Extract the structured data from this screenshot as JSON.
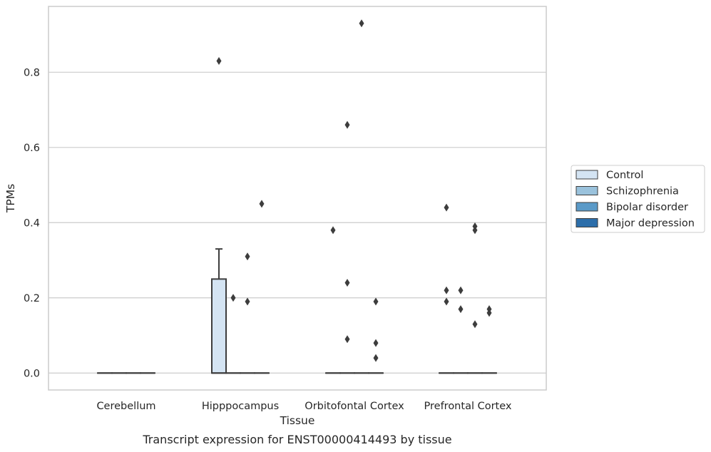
{
  "chart_data": {
    "type": "box",
    "title": "",
    "caption": "Transcript expression for ENST00000414493 by tissue",
    "xlabel": "Tissue",
    "ylabel": "TPMs",
    "ylim": [
      -0.045,
      0.975
    ],
    "yticks": [
      0.0,
      0.2,
      0.4,
      0.6,
      0.8
    ],
    "ytick_labels": [
      "0.0",
      "0.2",
      "0.4",
      "0.6",
      "0.8"
    ],
    "grid": "horizontal",
    "legend_position": "right",
    "categories": [
      "Cerebellum",
      "Hipppocampus",
      "Orbitofontal Cortex",
      "Prefrontal Cortex"
    ],
    "series": [
      {
        "name": "Control",
        "color": "#d4e4f3",
        "boxes": [
          {
            "category": "Cerebellum",
            "whislo": 0,
            "q1": 0,
            "med": 0,
            "q3": 0,
            "whishi": 0,
            "fliers": []
          },
          {
            "category": "Hipppocampus",
            "whislo": 0,
            "q1": 0,
            "med": 0,
            "q3": 0.25,
            "whishi": 0.33,
            "fliers": [
              0.83
            ]
          },
          {
            "category": "Orbitofontal Cortex",
            "whislo": 0,
            "q1": 0,
            "med": 0,
            "q3": 0,
            "whishi": 0,
            "fliers": [
              0.38
            ]
          },
          {
            "category": "Prefrontal Cortex",
            "whislo": 0,
            "q1": 0,
            "med": 0,
            "q3": 0,
            "whishi": 0,
            "fliers": [
              0.44,
              0.22,
              0.19
            ]
          }
        ]
      },
      {
        "name": "Schizophrenia",
        "color": "#9ac2dc",
        "boxes": [
          {
            "category": "Cerebellum",
            "whislo": 0,
            "q1": 0,
            "med": 0,
            "q3": 0,
            "whishi": 0,
            "fliers": []
          },
          {
            "category": "Hipppocampus",
            "whislo": 0,
            "q1": 0,
            "med": 0,
            "q3": 0,
            "whishi": 0,
            "fliers": [
              0.2
            ]
          },
          {
            "category": "Orbitofontal Cortex",
            "whislo": 0,
            "q1": 0,
            "med": 0,
            "q3": 0,
            "whishi": 0,
            "fliers": [
              0.66,
              0.24,
              0.09
            ]
          },
          {
            "category": "Prefrontal Cortex",
            "whislo": 0,
            "q1": 0,
            "med": 0,
            "q3": 0,
            "whishi": 0,
            "fliers": [
              0.22,
              0.17
            ]
          }
        ]
      },
      {
        "name": "Bipolar disorder",
        "color": "#5a9ac8",
        "boxes": [
          {
            "category": "Cerebellum",
            "whislo": 0,
            "q1": 0,
            "med": 0,
            "q3": 0,
            "whishi": 0,
            "fliers": []
          },
          {
            "category": "Hipppocampus",
            "whislo": 0,
            "q1": 0,
            "med": 0,
            "q3": 0,
            "whishi": 0,
            "fliers": [
              0.31,
              0.19
            ]
          },
          {
            "category": "Orbitofontal Cortex",
            "whislo": 0,
            "q1": 0,
            "med": 0,
            "q3": 0,
            "whishi": 0,
            "fliers": [
              0.93
            ]
          },
          {
            "category": "Prefrontal Cortex",
            "whislo": 0,
            "q1": 0,
            "med": 0,
            "q3": 0,
            "whishi": 0,
            "fliers": [
              0.39,
              0.38,
              0.13
            ]
          }
        ]
      },
      {
        "name": "Major depression",
        "color": "#2c6eaa",
        "boxes": [
          {
            "category": "Cerebellum",
            "whislo": 0,
            "q1": 0,
            "med": 0,
            "q3": 0,
            "whishi": 0,
            "fliers": []
          },
          {
            "category": "Hipppocampus",
            "whislo": 0,
            "q1": 0,
            "med": 0,
            "q3": 0,
            "whishi": 0,
            "fliers": [
              0.45
            ]
          },
          {
            "category": "Orbitofontal Cortex",
            "whislo": 0,
            "q1": 0,
            "med": 0,
            "q3": 0,
            "whishi": 0,
            "fliers": [
              0.19,
              0.08,
              0.04
            ]
          },
          {
            "category": "Prefrontal Cortex",
            "whislo": 0,
            "q1": 0,
            "med": 0,
            "q3": 0,
            "whishi": 0,
            "fliers": [
              0.17,
              0.16
            ]
          }
        ]
      }
    ],
    "colors": {
      "grid": "#cccccc",
      "frame": "#cccccc",
      "line": "#3d3d3d",
      "flier": "#3d3d3d",
      "text": "#262626"
    }
  }
}
